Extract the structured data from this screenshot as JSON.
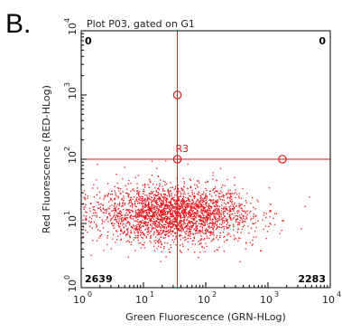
{
  "panel_letter": "B.",
  "plot_title": "Plot P03, gated on G1",
  "chart_data": {
    "type": "scatter",
    "title": "Plot P03, gated on G1",
    "xlabel": "Green Fluorescence (GRN-HLog)",
    "ylabel": "Red Fluorescence (RED-HLog)",
    "xscale": "log",
    "yscale": "log",
    "xlim": [
      1,
      10000
    ],
    "ylim": [
      1,
      10000
    ],
    "x_ticks": [
      {
        "base": "10",
        "exp": "0"
      },
      {
        "base": "10",
        "exp": "1"
      },
      {
        "base": "10",
        "exp": "2"
      },
      {
        "base": "10",
        "exp": "3"
      },
      {
        "base": "10",
        "exp": "4"
      }
    ],
    "y_ticks": [
      {
        "base": "10",
        "exp": "0"
      },
      {
        "base": "10",
        "exp": "1"
      },
      {
        "base": "10",
        "exp": "2"
      },
      {
        "base": "10",
        "exp": "3"
      },
      {
        "base": "10",
        "exp": "4"
      }
    ],
    "quadrant_gate": {
      "label": "R3",
      "x": 35,
      "y": 100
    },
    "quadrant_counts": {
      "upper_left": "0",
      "upper_right": "0",
      "lower_left": "2639",
      "lower_right": "2283"
    },
    "population": {
      "description_center_x": 30,
      "description_center_y": 14,
      "points_total": 4922
    },
    "colors": {
      "points": "#e8151b",
      "gate": "#e8151b",
      "frame": "#000000"
    }
  }
}
